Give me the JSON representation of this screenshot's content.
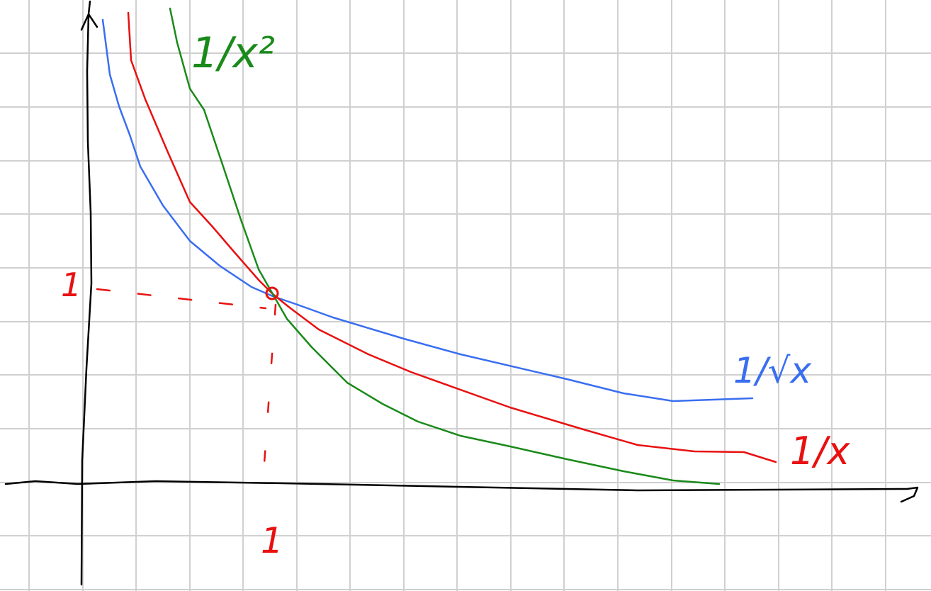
{
  "labels": {
    "inv_square": "1/x²",
    "inv_sqrt": "1/√x",
    "inv": "1/x",
    "y_one": "1",
    "x_one": "1"
  }
}
